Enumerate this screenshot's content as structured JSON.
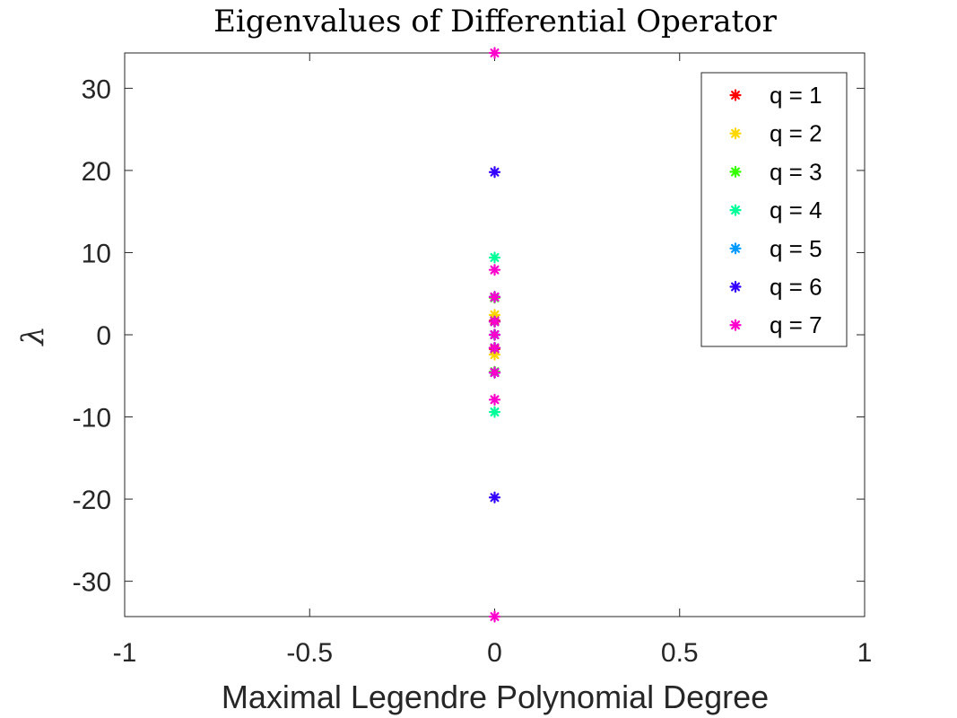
{
  "chart_data": {
    "type": "scatter",
    "title": "Eigenvalues of Differential Operator",
    "xlabel": "Maximal Legendre Polynomial Degree",
    "ylabel": "λ",
    "xlim": [
      -1,
      1
    ],
    "ylim": [
      -34.3,
      34.3
    ],
    "xticks": [
      -1,
      -0.5,
      0,
      0.5,
      1
    ],
    "xtick_labels": [
      "-1",
      "-0.5",
      "0",
      "0.5",
      "1"
    ],
    "yticks": [
      -30,
      -20,
      -10,
      0,
      10,
      20,
      30
    ],
    "ytick_labels": [
      "-30",
      "-20",
      "-10",
      "0",
      "10",
      "20",
      "30"
    ],
    "grid": false,
    "legend_position": "top-right",
    "marker": "asterisk",
    "series": [
      {
        "name": "q = 1",
        "color": "#ff0000",
        "x": [
          0,
          0
        ],
        "y": [
          -1.73,
          1.73
        ]
      },
      {
        "name": "q = 2",
        "color": "#ffd700",
        "x": [
          0,
          0,
          0,
          0
        ],
        "y": [
          -2.42,
          -1.6,
          1.6,
          2.42
        ]
      },
      {
        "name": "q = 3",
        "color": "#33ff00",
        "x": [
          0,
          0,
          0,
          0,
          0,
          0
        ],
        "y": [
          -4.5,
          -1.6,
          0,
          0,
          1.6,
          4.5
        ]
      },
      {
        "name": "q = 4",
        "color": "#00ff99",
        "x": [
          0,
          0,
          0,
          0,
          0,
          0
        ],
        "y": [
          -9.4,
          -4.6,
          -1.6,
          1.6,
          4.6,
          9.4
        ]
      },
      {
        "name": "q = 5",
        "color": "#0099ff",
        "x": [
          0,
          0,
          0,
          0,
          0,
          0,
          0
        ],
        "y": [
          -4.6,
          -1.6,
          0,
          0,
          1.6,
          4.6,
          0
        ]
      },
      {
        "name": "q = 6",
        "color": "#3300ff",
        "x": [
          0,
          0,
          0,
          0,
          0,
          0,
          0
        ],
        "y": [
          -19.8,
          -4.6,
          -1.6,
          0,
          1.6,
          4.6,
          19.8
        ]
      },
      {
        "name": "q = 7",
        "color": "#ff00cc",
        "x": [
          0,
          0,
          0,
          0,
          0,
          0,
          0,
          0,
          0
        ],
        "y": [
          -34.3,
          -7.9,
          -4.6,
          -1.6,
          1.6,
          4.6,
          7.9,
          34.3,
          0
        ]
      }
    ]
  }
}
